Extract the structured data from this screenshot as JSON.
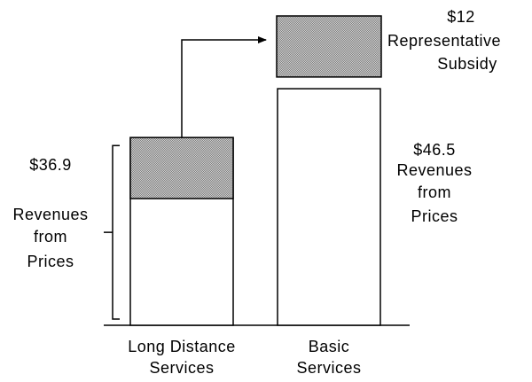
{
  "chart_data": {
    "type": "bar",
    "categories": [
      [
        "Long Distance",
        "Services"
      ],
      [
        "Basic",
        "Services"
      ]
    ],
    "revenues": {
      "values": [
        36.9,
        46.5
      ],
      "value_labels": [
        "$36.9",
        "$46.5"
      ],
      "label": [
        "Revenues",
        "from",
        "Prices"
      ]
    },
    "subsidy": {
      "value": 12,
      "value_label": "$12",
      "label": [
        "Representative",
        "Subsidy"
      ],
      "color": "#808080"
    }
  }
}
